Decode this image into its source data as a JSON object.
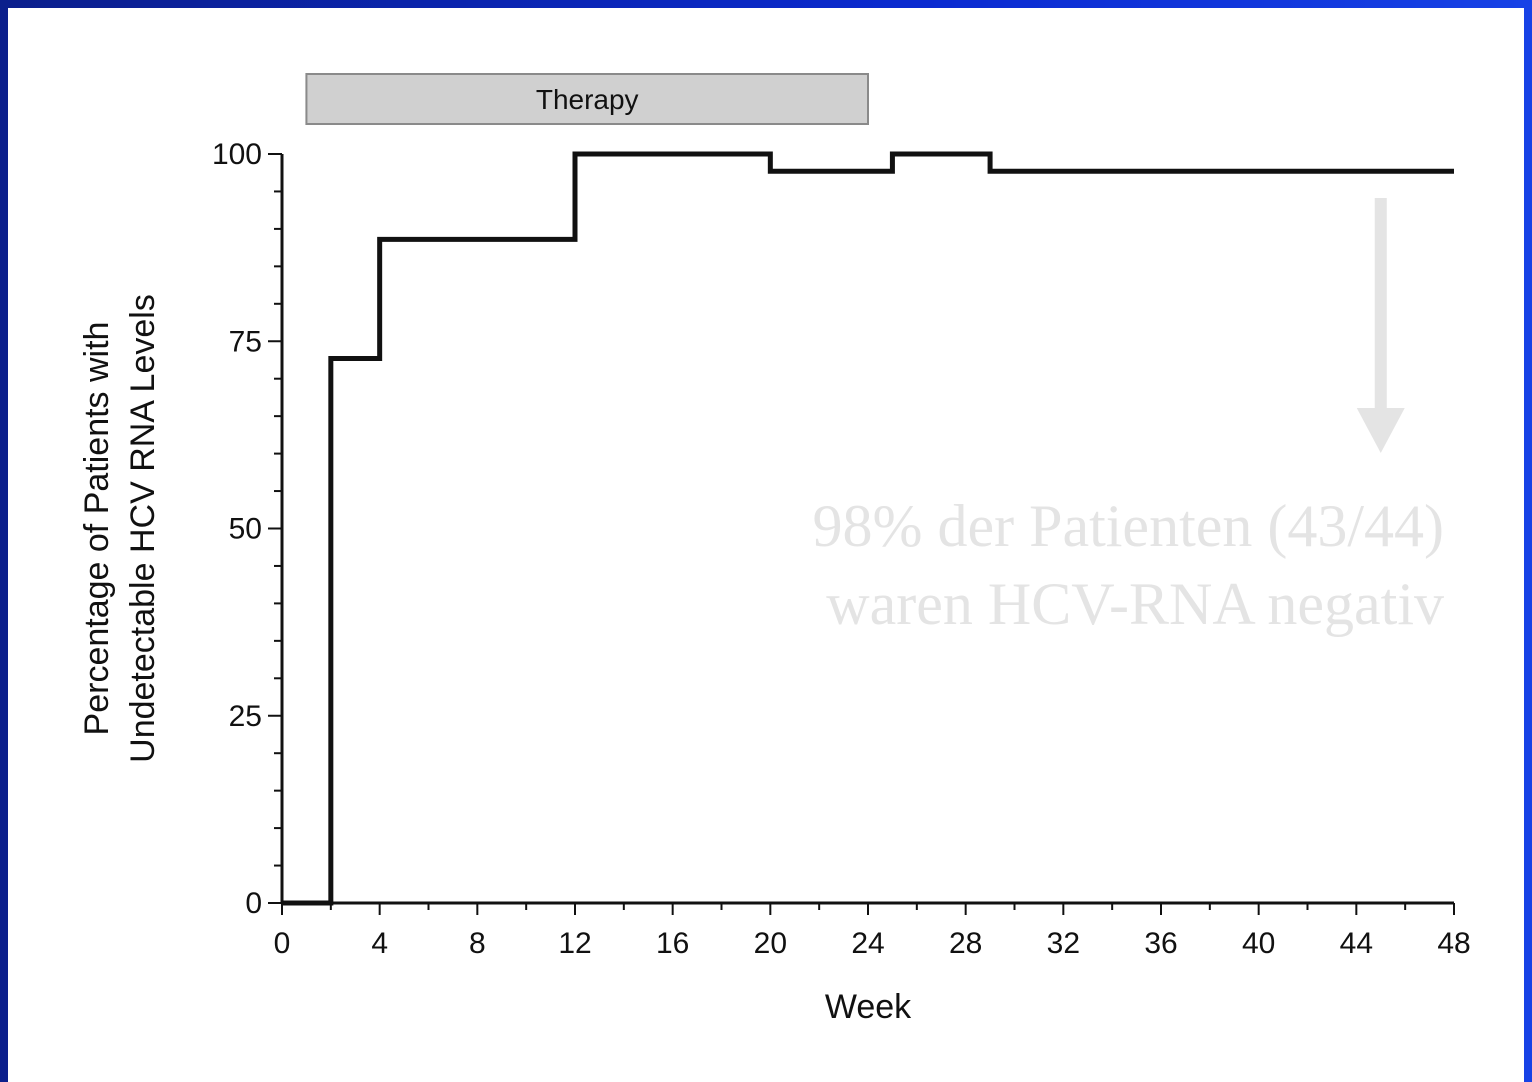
{
  "chart_data": {
    "type": "line",
    "step": true,
    "xlabel": "Week",
    "ylabel_lines": [
      "Percentage of Patients with",
      "Undetectable HCV RNA Levels"
    ],
    "xlim": [
      0,
      48
    ],
    "ylim": [
      0,
      100
    ],
    "xticks": [
      0,
      4,
      8,
      12,
      16,
      20,
      24,
      28,
      32,
      36,
      40,
      44,
      48
    ],
    "yticks": [
      0,
      25,
      50,
      75,
      100
    ],
    "series": [
      {
        "x": [
          0,
          2,
          2,
          4,
          4,
          12,
          12,
          20,
          20,
          25,
          25,
          29,
          29,
          48
        ],
        "y": [
          0,
          0,
          72.7,
          72.7,
          88.6,
          88.6,
          100,
          100,
          97.7,
          97.7,
          100,
          100,
          97.7,
          97.7
        ]
      }
    ],
    "therapy_band": {
      "label": "Therapy",
      "start_week": 1,
      "end_week": 24
    },
    "annotation": {
      "lines": [
        "98% der Patienten (43/44)",
        "waren HCV-RNA negativ"
      ],
      "arrow_week": 45
    },
    "colors": {
      "line": "#111111",
      "band": "#d0d0d0",
      "background": "#0a2ad0",
      "annotation": "#e4e4e4"
    }
  }
}
